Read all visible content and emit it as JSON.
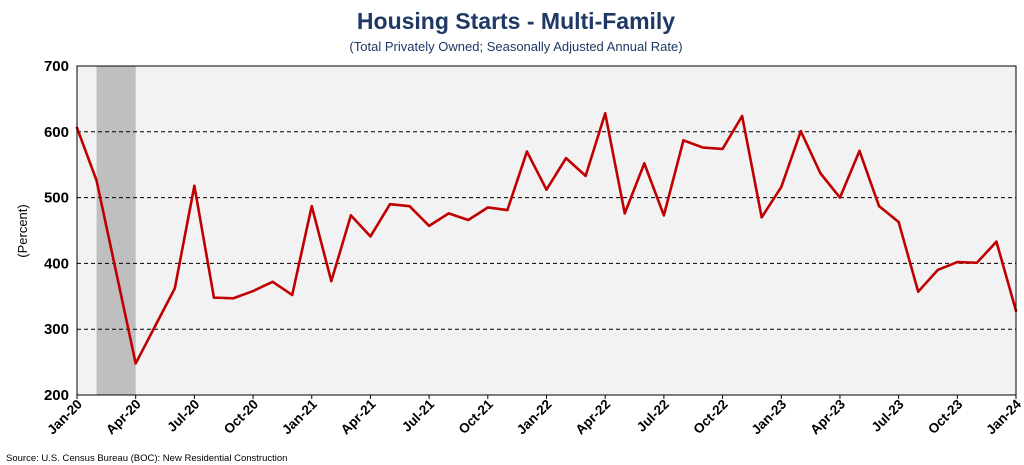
{
  "chart_data": {
    "type": "line",
    "title": "Housing Starts - Multi-Family",
    "subtitle": "(Total Privately Owned; Seasonally Adjusted Annual Rate)",
    "ylabel": "(Percent)",
    "source": "Source: U.S. Census Bureau (BOC): New Residential Construction",
    "ylim": [
      200,
      700
    ],
    "yticks": [
      200,
      300,
      400,
      500,
      600,
      700
    ],
    "grid": true,
    "x_tick_labels": [
      "Jan-20",
      "Apr-20",
      "Jul-20",
      "Oct-20",
      "Jan-21",
      "Apr-21",
      "Jul-21",
      "Oct-21",
      "Jan-22",
      "Apr-22",
      "Jul-22",
      "Oct-22",
      "Jan-23",
      "Apr-23",
      "Jul-23",
      "Oct-23",
      "Jan-24"
    ],
    "recession_shading": {
      "start": "Feb-20",
      "end": "Apr-20",
      "color": "#bfbfbf"
    },
    "series": [
      {
        "color": "#c00000",
        "x": [
          "Jan-20",
          "Feb-20",
          "Mar-20",
          "Apr-20",
          "May-20",
          "Jun-20",
          "Jul-20",
          "Aug-20",
          "Sep-20",
          "Oct-20",
          "Nov-20",
          "Dec-20",
          "Jan-21",
          "Feb-21",
          "Mar-21",
          "Apr-21",
          "May-21",
          "Jun-21",
          "Jul-21",
          "Aug-21",
          "Sep-21",
          "Oct-21",
          "Nov-21",
          "Dec-21",
          "Jan-22",
          "Feb-22",
          "Mar-22",
          "Apr-22",
          "May-22",
          "Jun-22",
          "Jul-22",
          "Aug-22",
          "Sep-22",
          "Oct-22",
          "Nov-22",
          "Dec-22",
          "Jan-23",
          "Feb-23",
          "Mar-23",
          "Apr-23",
          "May-23",
          "Jun-23",
          "Jul-23",
          "Aug-23",
          "Sep-23",
          "Oct-23",
          "Nov-23",
          "Dec-23",
          "Jan-24"
        ],
        "values": [
          606,
          526,
          387,
          248,
          305,
          362,
          518,
          348,
          347,
          358,
          372,
          352,
          487,
          373,
          473,
          441,
          490,
          487,
          457,
          476,
          466,
          485,
          481,
          570,
          512,
          560,
          533,
          628,
          476,
          552,
          473,
          587,
          576,
          574,
          624,
          470,
          516,
          601,
          537,
          500,
          571,
          487,
          463,
          357,
          390,
          402,
          401,
          433,
          328
        ]
      }
    ]
  }
}
